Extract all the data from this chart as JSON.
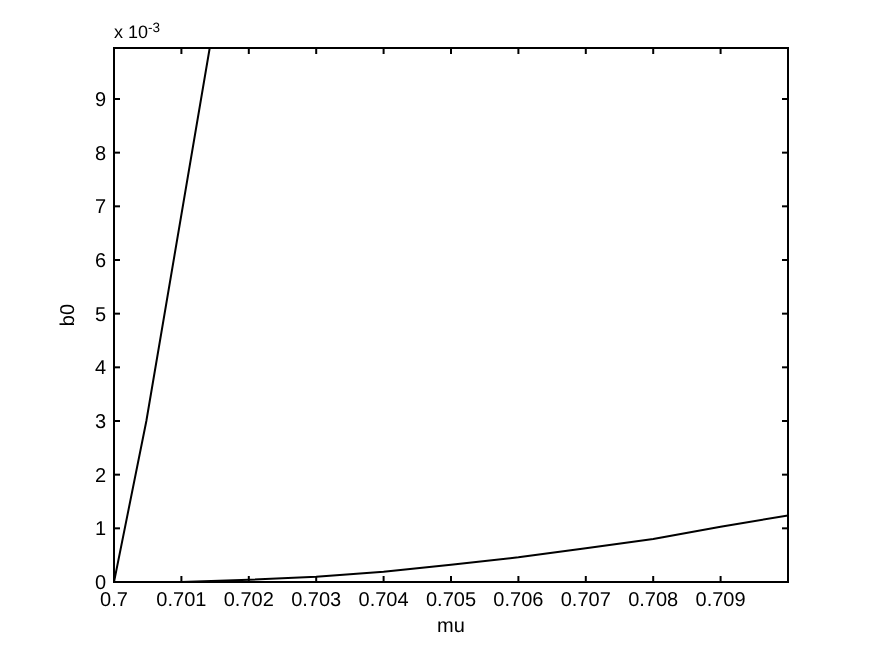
{
  "chart_data": {
    "type": "line",
    "xlabel": "mu",
    "ylabel": "b0",
    "annotations": [
      "x 10$^{-3}$"
    ],
    "xlim": [
      0.7,
      0.71
    ],
    "ylim": [
      0,
      9.95
    ],
    "xticks": [
      0.7,
      0.701,
      0.702,
      0.703,
      0.704,
      0.705,
      0.706,
      0.707,
      0.708,
      0.709
    ],
    "yticks": [
      0,
      1,
      2,
      3,
      4,
      5,
      6,
      7,
      8,
      9
    ],
    "grid": false,
    "series": [
      {
        "color": "#000000",
        "x": [
          0.7,
          0.70048,
          0.70142
        ],
        "values": [
          0,
          3,
          9.95
        ]
      },
      {
        "color": "#000000",
        "x": [
          0.7,
          0.701,
          0.702,
          0.703,
          0.704,
          0.705,
          0.706,
          0.707,
          0.708,
          0.709,
          0.71
        ],
        "values": [
          0,
          0,
          0.04,
          0.1,
          0.19,
          0.32,
          0.46,
          0.63,
          0.8,
          1.03,
          1.24
        ]
      }
    ]
  }
}
